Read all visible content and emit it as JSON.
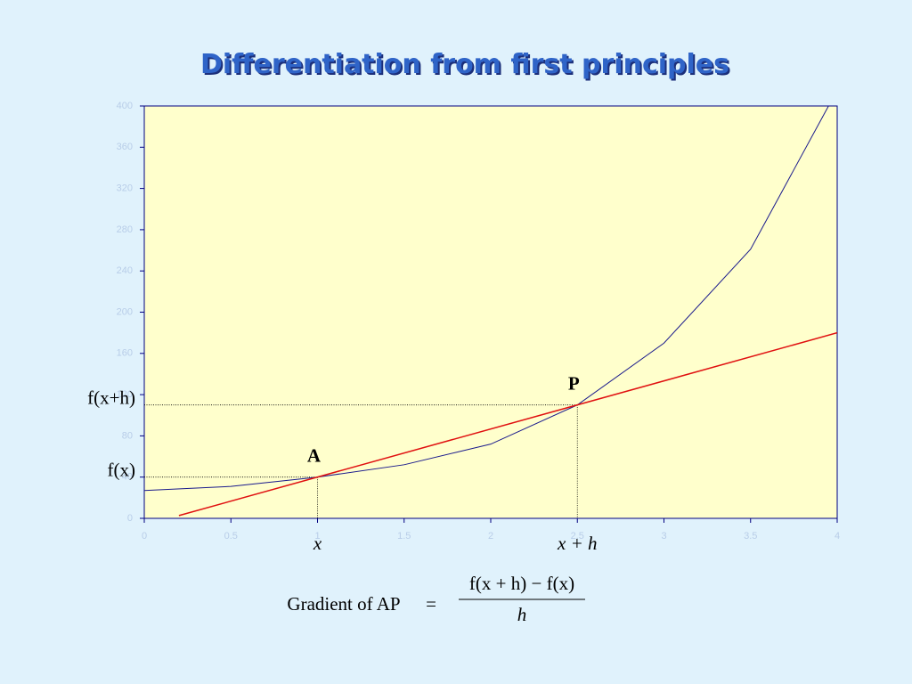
{
  "chart_data": {
    "type": "line",
    "title": "Differentiation from first principles",
    "xlim": [
      0,
      4
    ],
    "ylim": [
      0,
      400
    ],
    "xticks": [
      0,
      0.5,
      1,
      1.5,
      2,
      2.5,
      3,
      3.5,
      4
    ],
    "yticks": [
      0,
      40,
      80,
      120,
      160,
      200,
      240,
      280,
      320,
      360,
      400
    ],
    "grid": false,
    "series": [
      {
        "color": "#1a1a8c",
        "x": [
          0,
          0.5,
          1,
          1.5,
          2,
          2.5,
          3,
          3.5,
          3.95
        ],
        "values": [
          27,
          31,
          40,
          52,
          72,
          110,
          170,
          261,
          400
        ]
      },
      {
        "color": "#e01010",
        "x": [
          0.2,
          4
        ],
        "values": [
          2.7,
          180
        ]
      }
    ],
    "points": [
      {
        "label": "A",
        "x": 1,
        "y": 40
      },
      {
        "label": "P",
        "x": 2.5,
        "y": 110
      }
    ],
    "y_markers": [
      {
        "label": "f(x)",
        "value": 40
      },
      {
        "label": "f(x+h)",
        "value": 110
      }
    ],
    "x_markers": [
      {
        "label": "x",
        "value": 1
      },
      {
        "label": "x + h",
        "value": 2.5
      }
    ],
    "formula": {
      "lhs": "Gradient of AP",
      "eq": "=",
      "numerator": "f(x + h) − f(x)",
      "denominator": "h"
    }
  }
}
